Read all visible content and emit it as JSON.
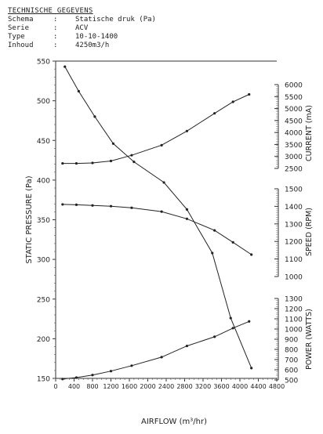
{
  "spec": {
    "title": "TECHNISCHE GEGEVENS",
    "rows": [
      {
        "key": "Schema",
        "value": "Statische druk (Pa)"
      },
      {
        "key": "Serie",
        "value": "ACV"
      },
      {
        "key": "Type",
        "value": "10-10-1400"
      },
      {
        "key": "Inhoud",
        "value": "4250m3/h"
      }
    ]
  },
  "chart_data": {
    "type": "line",
    "xlabel": "AIRFLOW (m³/hr)",
    "xlim": [
      0,
      4800
    ],
    "xticks": [
      0,
      400,
      800,
      1200,
      1600,
      2000,
      2400,
      2800,
      3200,
      3600,
      4000,
      4400,
      4800
    ],
    "ylabel": "STATIC PRESSURE (Pa)",
    "ylim": [
      150,
      550
    ],
    "yticks": [
      150,
      200,
      250,
      300,
      350,
      400,
      450,
      500,
      550
    ],
    "grid": false,
    "right_axes": [
      {
        "label": "CURRENT (mA)",
        "ticks": [
          2500,
          3000,
          3500,
          4000,
          4500,
          5000,
          5500,
          6000
        ]
      },
      {
        "label": "SPEED (RPM)",
        "ticks": [
          1000,
          1100,
          1200,
          1300,
          1400,
          1500
        ]
      },
      {
        "label": "POWER (WATTS)",
        "ticks": [
          500,
          600,
          700,
          800,
          900,
          1000,
          1100,
          1200,
          1300
        ]
      }
    ],
    "series": [
      {
        "name": "",
        "axis": "pressure",
        "x": [
          200,
          500,
          850,
          1250,
          1700,
          2350,
          2850,
          3400,
          3800,
          4250
        ],
        "y": [
          543,
          512,
          480,
          446,
          423,
          397,
          363,
          308,
          226,
          163
        ]
      },
      {
        "name": "",
        "axis": "current",
        "x": [
          150,
          450,
          800,
          1200,
          1650,
          2300,
          2850,
          3450,
          3850,
          4200
        ],
        "y": [
          2710,
          2710,
          2730,
          2810,
          3050,
          3470,
          4060,
          4800,
          5280,
          5590
        ]
      },
      {
        "name": "",
        "axis": "speed",
        "x": [
          150,
          450,
          800,
          1200,
          1650,
          2300,
          2850,
          3450,
          3850,
          4250
        ],
        "y": [
          1411,
          1409,
          1405,
          1401,
          1392,
          1370,
          1329,
          1263,
          1195,
          1125
        ]
      },
      {
        "name": "",
        "axis": "power",
        "x": [
          150,
          450,
          800,
          1200,
          1650,
          2300,
          2850,
          3450,
          3850,
          4200
        ],
        "y": [
          509,
          523,
          548,
          587,
          640,
          724,
          834,
          924,
          1009,
          1075
        ]
      }
    ]
  }
}
